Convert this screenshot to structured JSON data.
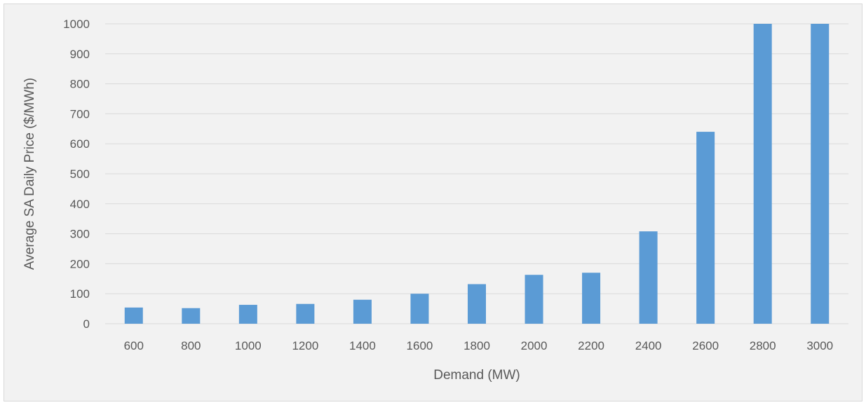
{
  "chart_data": {
    "type": "bar",
    "categories": [
      "600",
      "800",
      "1000",
      "1200",
      "1400",
      "1600",
      "1800",
      "2000",
      "2200",
      "2400",
      "2600",
      "2800",
      "3000"
    ],
    "series": [
      {
        "values": [
          54,
          52,
          63,
          66,
          80,
          100,
          132,
          163,
          170,
          308,
          640,
          1000,
          1000
        ]
      }
    ],
    "xlabel": "Demand (MW)",
    "ylabel": "Average SA Daily Price ($/MWh)",
    "ylim": [
      0,
      1000
    ],
    "yticks": [
      "0",
      "100",
      "200",
      "300",
      "400",
      "500",
      "600",
      "700",
      "800",
      "900",
      "1000"
    ],
    "grid": true,
    "legend": "none",
    "bar_color": "#5b9bd5",
    "grid_color": "#d9d9d9",
    "background_color": "#f2f2f2"
  }
}
